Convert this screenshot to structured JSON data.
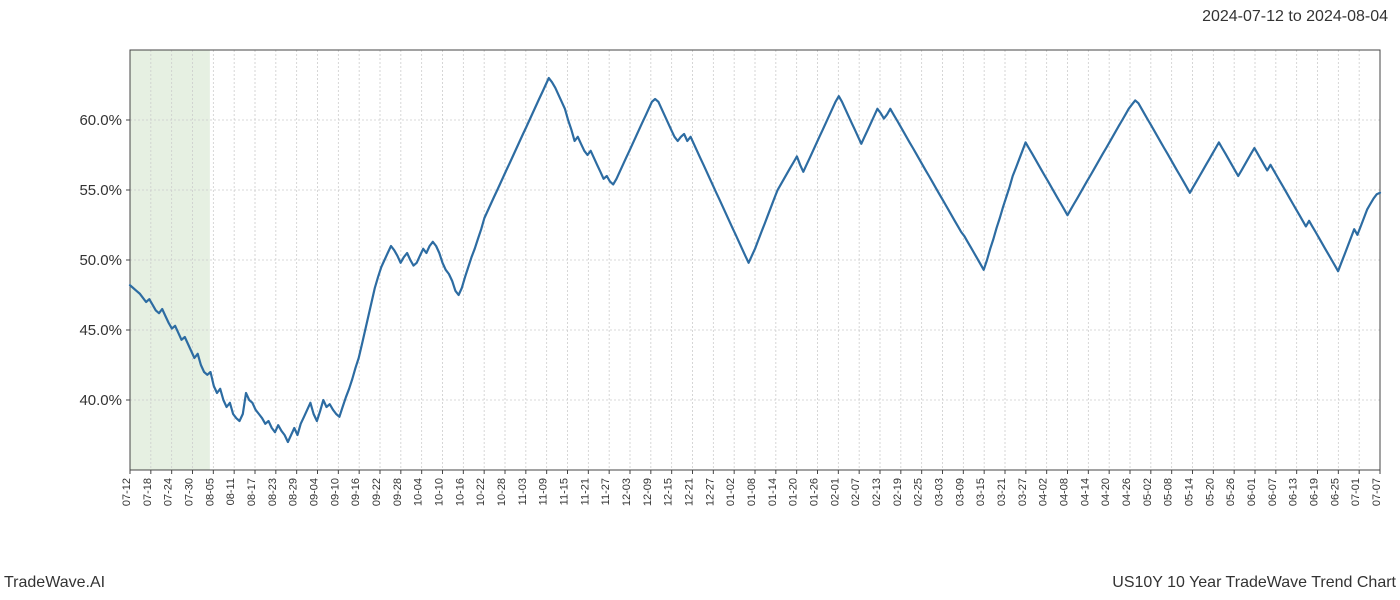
{
  "header": {
    "date_range": "2024-07-12 to 2024-08-04"
  },
  "footer": {
    "brand": "TradeWave.AI",
    "title": "US10Y 10 Year TradeWave Trend Chart"
  },
  "chart": {
    "type": "line",
    "background_color": "#ffffff",
    "line_color": "#2d6ca2",
    "line_width": 2.2,
    "grid_color": "#cccccc",
    "grid_dash": "2,2",
    "axis_color": "#444444",
    "highlight_fill": "#dcead6",
    "highlight_opacity": 0.7,
    "highlight_range": [
      "07-12",
      "08-04"
    ],
    "ylim": [
      35,
      65
    ],
    "y_ticks": [
      40.0,
      45.0,
      50.0,
      55.0,
      60.0
    ],
    "y_tick_format": "%.1f%%",
    "label_fontsize": 15,
    "x_tick_labels": [
      "07-12",
      "07-18",
      "07-24",
      "07-30",
      "08-05",
      "08-11",
      "08-17",
      "08-23",
      "08-29",
      "09-04",
      "09-10",
      "09-16",
      "09-22",
      "09-28",
      "10-04",
      "10-10",
      "10-16",
      "10-22",
      "10-28",
      "11-03",
      "11-09",
      "11-15",
      "11-21",
      "11-27",
      "12-03",
      "12-09",
      "12-15",
      "12-21",
      "12-27",
      "01-02",
      "01-08",
      "01-14",
      "01-20",
      "01-26",
      "02-01",
      "02-07",
      "02-13",
      "02-19",
      "02-25",
      "03-03",
      "03-09",
      "03-15",
      "03-21",
      "03-27",
      "04-02",
      "04-08",
      "04-14",
      "04-20",
      "04-26",
      "05-02",
      "05-08",
      "05-14",
      "05-20",
      "05-26",
      "06-01",
      "06-07",
      "06-13",
      "06-19",
      "06-25",
      "07-01",
      "07-07"
    ],
    "x_label_fontsize": 11,
    "series": [
      48.2,
      48.0,
      47.8,
      47.6,
      47.3,
      47.0,
      47.2,
      46.8,
      46.4,
      46.2,
      46.5,
      46.0,
      45.5,
      45.1,
      45.3,
      44.8,
      44.3,
      44.5,
      44.0,
      43.5,
      43.0,
      43.3,
      42.5,
      42.0,
      41.8,
      42.0,
      41.0,
      40.5,
      40.8,
      40.0,
      39.5,
      39.8,
      39.0,
      38.7,
      38.5,
      39.0,
      40.5,
      40.0,
      39.8,
      39.3,
      39.0,
      38.7,
      38.3,
      38.5,
      38.0,
      37.7,
      38.2,
      37.8,
      37.5,
      37.0,
      37.5,
      38.0,
      37.5,
      38.3,
      38.8,
      39.3,
      39.8,
      39.0,
      38.5,
      39.2,
      40.0,
      39.5,
      39.7,
      39.3,
      39.0,
      38.8,
      39.5,
      40.2,
      40.8,
      41.5,
      42.3,
      43.0,
      44.0,
      45.0,
      46.0,
      47.0,
      48.0,
      48.8,
      49.5,
      50.0,
      50.5,
      51.0,
      50.7,
      50.3,
      49.8,
      50.2,
      50.5,
      50.0,
      49.6,
      49.8,
      50.3,
      50.8,
      50.5,
      51.0,
      51.3,
      51.0,
      50.5,
      49.8,
      49.3,
      49.0,
      48.5,
      47.8,
      47.5,
      48.0,
      48.8,
      49.5,
      50.2,
      50.8,
      51.5,
      52.2,
      53.0,
      53.5,
      54.0,
      54.5,
      55.0,
      55.5,
      56.0,
      56.5,
      57.0,
      57.5,
      58.0,
      58.5,
      59.0,
      59.5,
      60.0,
      60.5,
      61.0,
      61.5,
      62.0,
      62.5,
      63.0,
      62.7,
      62.3,
      61.8,
      61.3,
      60.8,
      60.0,
      59.3,
      58.5,
      58.8,
      58.3,
      57.8,
      57.5,
      57.8,
      57.3,
      56.8,
      56.3,
      55.8,
      56.0,
      55.6,
      55.4,
      55.8,
      56.3,
      56.8,
      57.3,
      57.8,
      58.3,
      58.8,
      59.3,
      59.8,
      60.3,
      60.8,
      61.3,
      61.5,
      61.3,
      60.8,
      60.3,
      59.8,
      59.3,
      58.8,
      58.5,
      58.8,
      59.0,
      58.5,
      58.8,
      58.3,
      57.8,
      57.3,
      56.8,
      56.3,
      55.8,
      55.3,
      54.8,
      54.3,
      53.8,
      53.3,
      52.8,
      52.3,
      51.8,
      51.3,
      50.8,
      50.3,
      49.8,
      50.3,
      50.8,
      51.4,
      52.0,
      52.6,
      53.2,
      53.8,
      54.4,
      55.0,
      55.4,
      55.8,
      56.2,
      56.6,
      57.0,
      57.4,
      56.8,
      56.3,
      56.8,
      57.3,
      57.8,
      58.3,
      58.8,
      59.3,
      59.8,
      60.3,
      60.8,
      61.3,
      61.7,
      61.3,
      60.8,
      60.3,
      59.8,
      59.3,
      58.8,
      58.3,
      58.8,
      59.3,
      59.8,
      60.3,
      60.8,
      60.5,
      60.1,
      60.4,
      60.8,
      60.4,
      60.0,
      59.6,
      59.2,
      58.8,
      58.4,
      58.0,
      57.6,
      57.2,
      56.8,
      56.4,
      56.0,
      55.6,
      55.2,
      54.8,
      54.4,
      54.0,
      53.6,
      53.2,
      52.8,
      52.4,
      52.0,
      51.7,
      51.3,
      50.9,
      50.5,
      50.1,
      49.7,
      49.3,
      50.0,
      50.8,
      51.5,
      52.3,
      53.0,
      53.8,
      54.5,
      55.2,
      56.0,
      56.6,
      57.2,
      57.8,
      58.4,
      58.0,
      57.6,
      57.2,
      56.8,
      56.4,
      56.0,
      55.6,
      55.2,
      54.8,
      54.4,
      54.0,
      53.6,
      53.2,
      53.6,
      54.0,
      54.4,
      54.8,
      55.2,
      55.6,
      56.0,
      56.4,
      56.8,
      57.2,
      57.6,
      58.0,
      58.4,
      58.8,
      59.2,
      59.6,
      60.0,
      60.4,
      60.8,
      61.1,
      61.4,
      61.2,
      60.8,
      60.4,
      60.0,
      59.6,
      59.2,
      58.8,
      58.4,
      58.0,
      57.6,
      57.2,
      56.8,
      56.4,
      56.0,
      55.6,
      55.2,
      54.8,
      55.2,
      55.6,
      56.0,
      56.4,
      56.8,
      57.2,
      57.6,
      58.0,
      58.4,
      58.0,
      57.6,
      57.2,
      56.8,
      56.4,
      56.0,
      56.4,
      56.8,
      57.2,
      57.6,
      58.0,
      57.6,
      57.2,
      56.8,
      56.4,
      56.8,
      56.4,
      56.0,
      55.6,
      55.2,
      54.8,
      54.4,
      54.0,
      53.6,
      53.2,
      52.8,
      52.4,
      52.8,
      52.4,
      52.0,
      51.6,
      51.2,
      50.8,
      50.4,
      50.0,
      49.6,
      49.2,
      49.8,
      50.4,
      51.0,
      51.6,
      52.2,
      51.8,
      52.4,
      53.0,
      53.6,
      54.0,
      54.4,
      54.7,
      54.8
    ]
  }
}
